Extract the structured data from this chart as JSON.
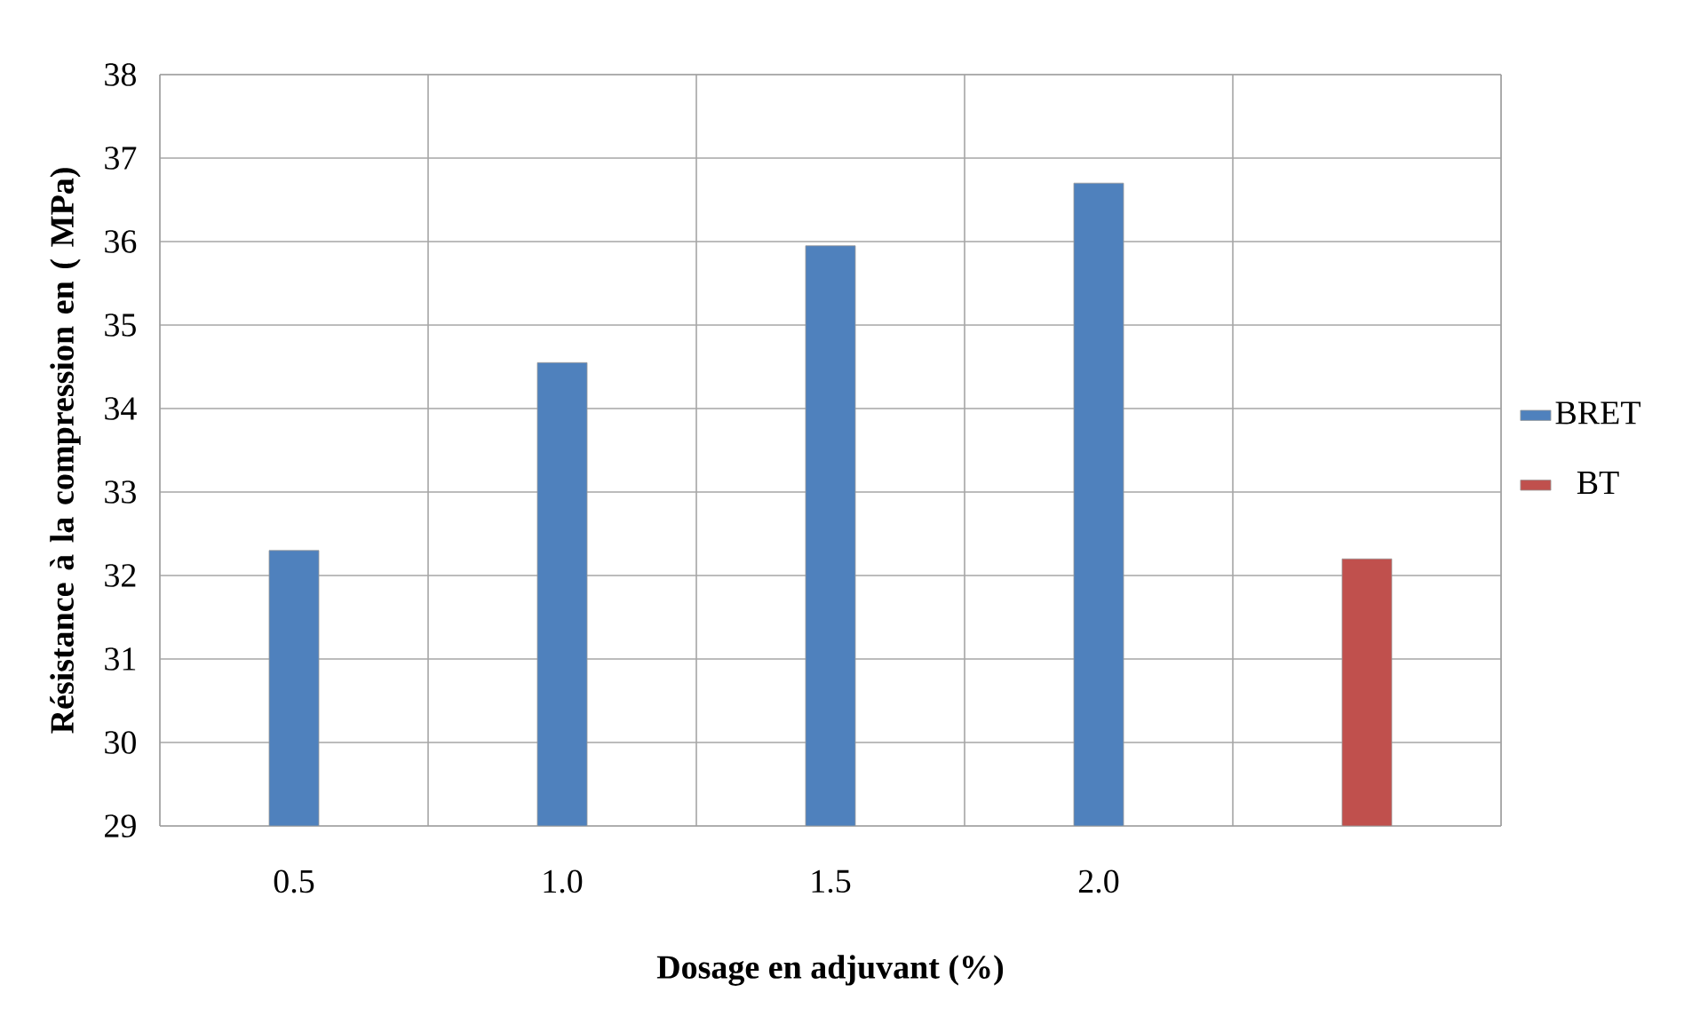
{
  "chart_data": {
    "type": "bar",
    "xlabel": "Dosage en adjuvant  (%)",
    "ylabel": "Résistance à la compression en ( MPa)",
    "categories": [
      "0.5",
      "1.0",
      "1.5",
      "2.0",
      null
    ],
    "series": [
      {
        "name": "BRET",
        "color": "#4f81bd",
        "values": [
          32.3,
          34.55,
          35.95,
          36.7,
          null
        ]
      },
      {
        "name": "BT",
        "color": "#c0504d",
        "values": [
          null,
          null,
          null,
          null,
          32.2
        ]
      }
    ],
    "ylim": [
      29,
      38
    ],
    "yticks": [
      29,
      30,
      31,
      32,
      33,
      34,
      35,
      36,
      37,
      38
    ],
    "grid": true,
    "legend": "right"
  }
}
